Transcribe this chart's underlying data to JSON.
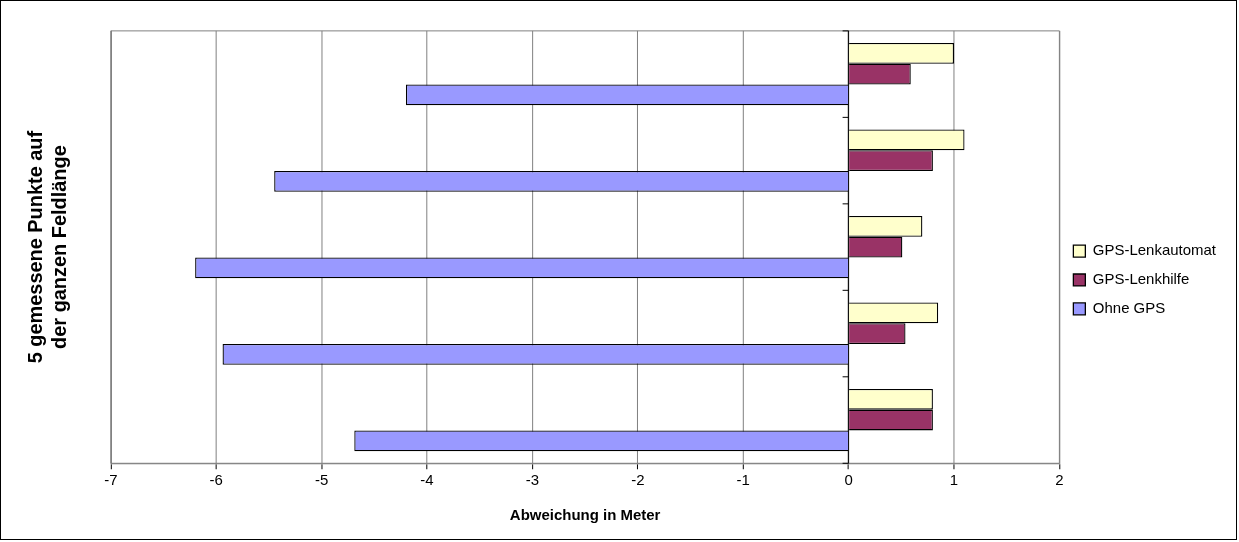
{
  "chart_data": {
    "type": "bar",
    "orientation": "horizontal",
    "ylabel": "5 gemessene Punkte auf der ganzen Feldlänge",
    "xlabel": "Abweichung in Meter",
    "categories": [
      null,
      null,
      null,
      null,
      null
    ],
    "series": [
      {
        "name": "GPS-Lenkautomat",
        "color": "#ffffcc",
        "values": [
          1.0,
          1.1,
          0.7,
          0.85,
          0.8
        ]
      },
      {
        "name": "GPS-Lenkhilfe",
        "color": "#993366",
        "values": [
          0.59,
          0.8,
          0.51,
          0.54,
          0.8
        ]
      },
      {
        "name": "Ohne GPS",
        "color": "#9999ff",
        "values": [
          -4.2,
          -5.45,
          -6.2,
          -5.94,
          -4.69
        ]
      }
    ],
    "xlim": [
      -7,
      2
    ],
    "xticks": [
      -7,
      -6,
      -5,
      -4,
      -3,
      -2,
      -1,
      0,
      1,
      2
    ],
    "grid": "x",
    "legend": "right",
    "tick_labels": "x"
  }
}
